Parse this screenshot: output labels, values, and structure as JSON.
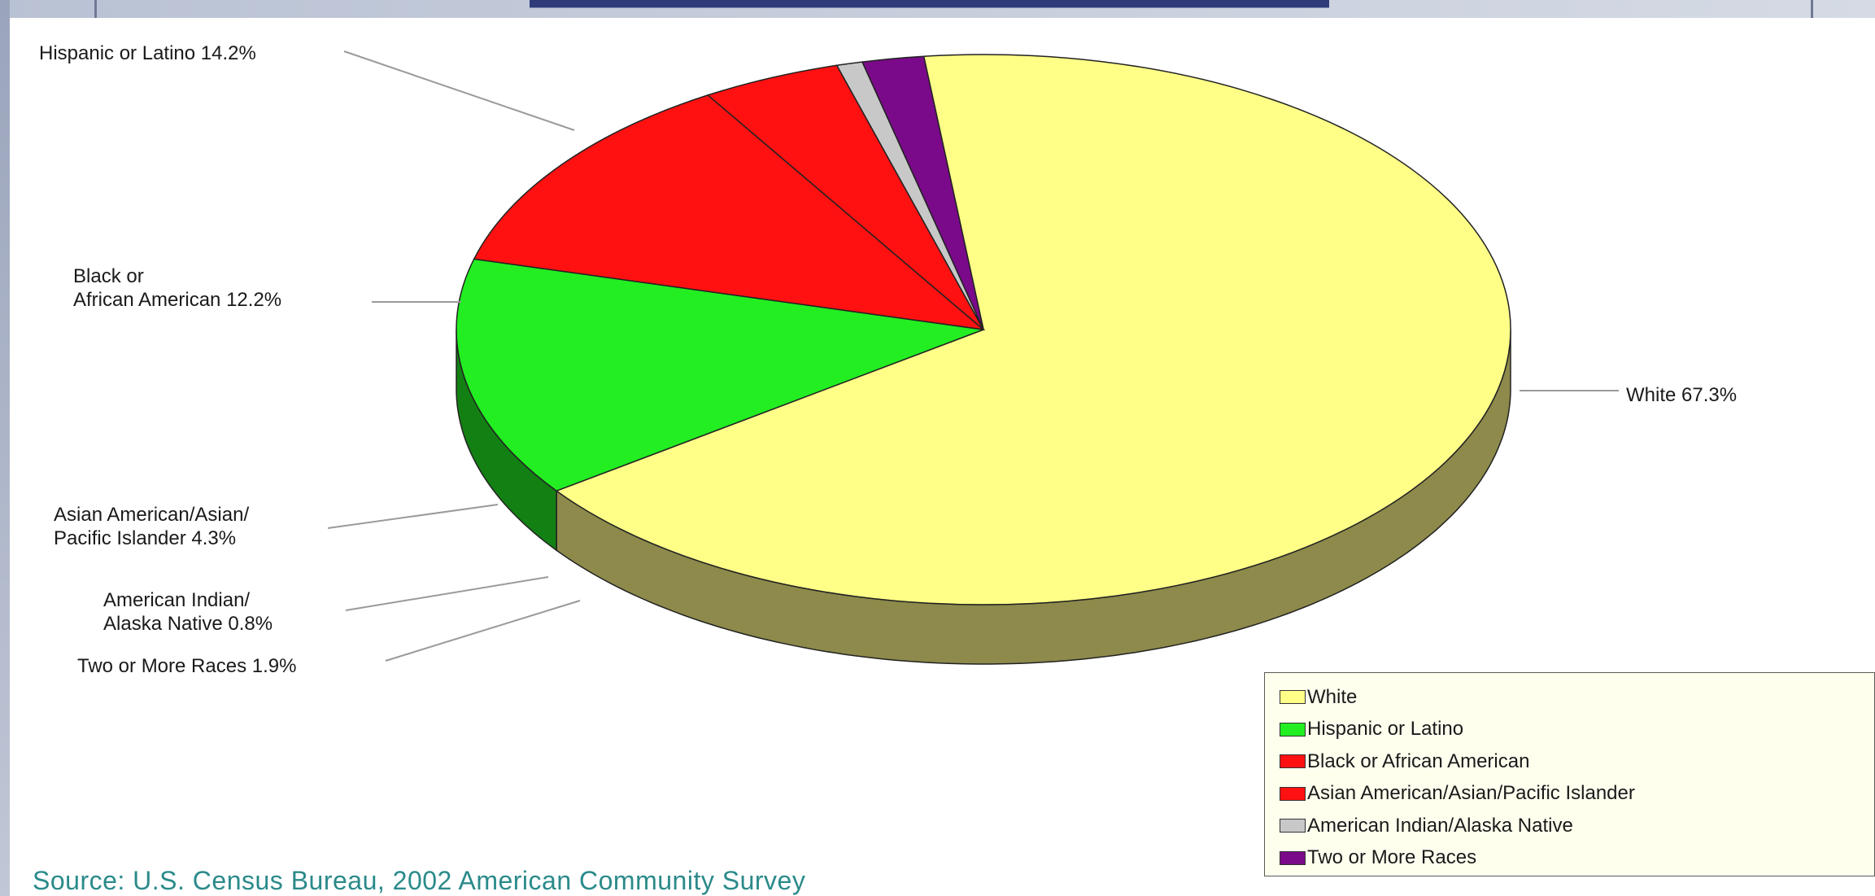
{
  "chart_data": {
    "type": "pie",
    "title": "",
    "slices": [
      {
        "label": "White",
        "value": 67.3,
        "callout": "White 67.3%",
        "color": "#ffff88",
        "side_color": "#8d8a4b"
      },
      {
        "label": "Hispanic or Latino",
        "value": 14.2,
        "callout": "Hispanic or Latino 14.2%",
        "color": "#22ee22",
        "side_color": "#138013"
      },
      {
        "label": "Black or African American",
        "value": 12.2,
        "callout": "Black or African American 12.2%",
        "callout_lines": [
          "Black or",
          "African American 12.2%"
        ],
        "color": "#ff1111",
        "side_color": "#8a0000"
      },
      {
        "label": "Asian American/Asian/Pacific Islander",
        "value": 4.3,
        "callout": "Asian American/Asian/ Pacific Islander 4.3%",
        "callout_lines": [
          "Asian American/Asian/",
          "Pacific Islander 4.3%"
        ],
        "color": "#ff1111",
        "side_color": "#8a0000"
      },
      {
        "label": "American Indian/Alaska Native",
        "value": 0.8,
        "callout": "American Indian/ Alaska Native 0.8%",
        "callout_lines": [
          "American Indian/",
          "Alaska Native 0.8%"
        ],
        "color": "#c8c8c8",
        "side_color": "#6e6e6e"
      },
      {
        "label": "Two or More Races",
        "value": 1.9,
        "callout": "Two or More Races 1.9%",
        "color": "#7a0a8a",
        "side_color": "#3f0548"
      }
    ],
    "legend_placement": "bottom-right",
    "3d": true
  },
  "legend": {
    "items": [
      "White",
      "Hispanic or Latino",
      "Black or African American",
      "Asian American/Asian/Pacific Islander",
      "American Indian/Alaska Native",
      "Two or More Races"
    ]
  },
  "source_text": "Source: U.S. Census Bureau,  2002 American Community Survey"
}
